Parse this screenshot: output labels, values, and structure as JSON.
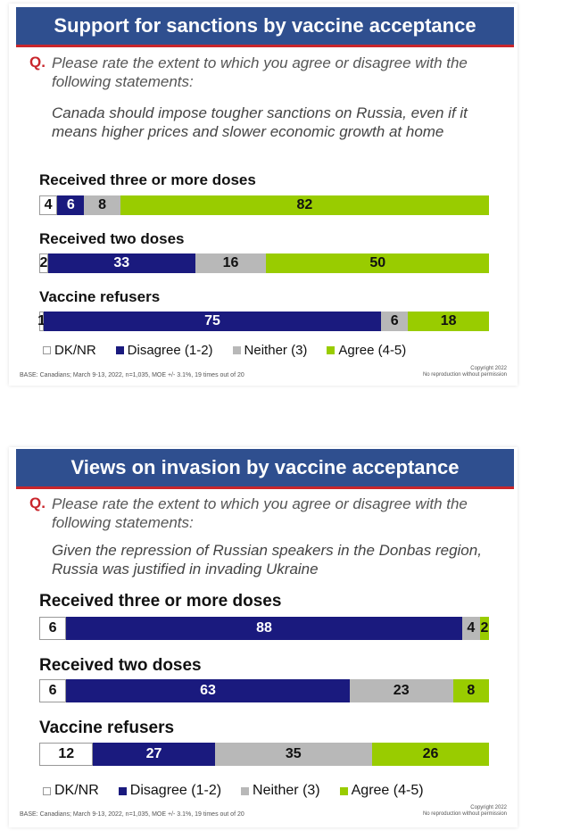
{
  "colors": {
    "dknr": "#ffffff",
    "disagree": "#1a1a7e",
    "neither": "#b8b8b8",
    "agree": "#99cc00",
    "title_bg": "#2f4f8f",
    "accent": "#c9262c"
  },
  "chart_data": [
    {
      "type": "bar",
      "stacked": true,
      "orientation": "horizontal",
      "title": "Support for sanctions by vaccine acceptance",
      "question_label": "Q.",
      "question": "Please rate the extent to which you agree or disagree with the following statements:",
      "statement": "Canada should impose tougher sanctions on Russia, even if it means higher prices and slower economic growth at home",
      "categories": [
        "Received three or more doses",
        "Received two doses",
        "Vaccine refusers"
      ],
      "series": [
        {
          "name": "DK/NR",
          "values": [
            4,
            2,
            1
          ]
        },
        {
          "name": "Disagree (1-2)",
          "values": [
            6,
            33,
            75
          ]
        },
        {
          "name": "Neither (3)",
          "values": [
            8,
            16,
            6
          ]
        },
        {
          "name": "Agree (4-5)",
          "values": [
            82,
            50,
            18
          ]
        }
      ],
      "legend": [
        "DK/NR",
        "Disagree (1-2)",
        "Neither (3)",
        "Agree (4-5)"
      ],
      "base": "BASE: Canadians; March 9-13, 2022, n=1,035, MOE +/- 3.1%, 19 times out of 20",
      "copyright": [
        "Copyright 2022",
        "No reproduction without permission"
      ]
    },
    {
      "type": "bar",
      "stacked": true,
      "orientation": "horizontal",
      "title": "Views on invasion by vaccine acceptance",
      "question_label": "Q.",
      "question": "Please rate the extent to which you agree or disagree with the following statements:",
      "statement": "Given the repression of Russian speakers in the Donbas region, Russia was justified in invading Ukraine",
      "categories": [
        "Received three or more doses",
        "Received two doses",
        "Vaccine refusers"
      ],
      "series": [
        {
          "name": "DK/NR",
          "values": [
            6,
            6,
            12
          ]
        },
        {
          "name": "Disagree (1-2)",
          "values": [
            88,
            63,
            27
          ]
        },
        {
          "name": "Neither (3)",
          "values": [
            4,
            23,
            35
          ]
        },
        {
          "name": "Agree (4-5)",
          "values": [
            2,
            8,
            26
          ]
        }
      ],
      "legend": [
        "DK/NR",
        "Disagree (1-2)",
        "Neither (3)",
        "Agree (4-5)"
      ],
      "base": "BASE: Canadians; March 9-13, 2022, n=1,035, MOE +/- 3.1%, 19 times out of 20",
      "copyright": [
        "Copyright 2022",
        "No reproduction without permission"
      ]
    }
  ]
}
